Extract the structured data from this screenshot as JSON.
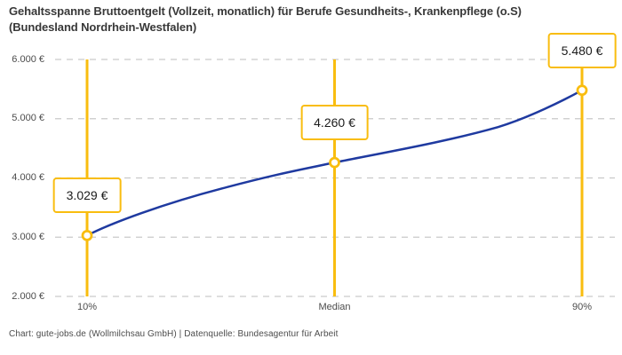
{
  "chart_data": {
    "type": "line",
    "title": "Gehaltsspanne Bruttoentgelt (Vollzeit, monatlich) für Berufe Gesundheits-, Krankenpflege (o.S) (Bundesland Nordrhein-Westfalen)",
    "categories": [
      "10%",
      "Median",
      "90%"
    ],
    "values": [
      3029,
      4260,
      5480
    ],
    "value_labels": [
      "3.029 €",
      "4.260 €",
      "5.480 €"
    ],
    "ylim": [
      2000,
      6000
    ],
    "y_ticks": [
      2000,
      3000,
      4000,
      5000,
      6000
    ],
    "y_tick_labels": [
      "2.000 €",
      "3.000 €",
      "4.000 €",
      "5.000 €",
      "6.000 €"
    ],
    "xlabel": "",
    "ylabel": "",
    "grid": "horizontal-dashed",
    "legend": "none",
    "marker": "open-circle",
    "line_color": "#1f3aa0",
    "highlight_color": "#f9bd0f"
  },
  "footer": "Chart: gute-jobs.de (Wollmilchsau GmbH) | Datenquelle: Bundesagentur für Arbeit"
}
